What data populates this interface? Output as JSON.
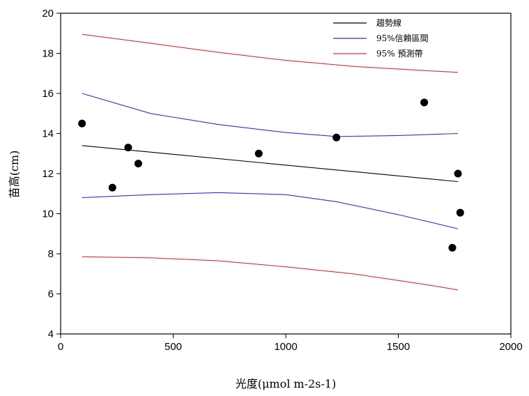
{
  "chart_data": {
    "type": "scatter",
    "xlabel": "光度(μmol m-2s-1)",
    "ylabel": "苗高(cm)",
    "xlim": [
      0,
      2000
    ],
    "ylim": [
      4,
      20
    ],
    "xticks": [
      0,
      500,
      1000,
      1500,
      2000
    ],
    "yticks": [
      4,
      6,
      8,
      10,
      12,
      14,
      16,
      18,
      20
    ],
    "grid": false,
    "legend_position": "top-right",
    "points": [
      {
        "x": 95,
        "y": 14.5
      },
      {
        "x": 230,
        "y": 11.3
      },
      {
        "x": 300,
        "y": 13.3
      },
      {
        "x": 345,
        "y": 12.5
      },
      {
        "x": 880,
        "y": 13.0
      },
      {
        "x": 1225,
        "y": 13.8
      },
      {
        "x": 1615,
        "y": 15.55
      },
      {
        "x": 1740,
        "y": 8.3
      },
      {
        "x": 1765,
        "y": 12.0
      },
      {
        "x": 1775,
        "y": 10.05
      }
    ],
    "series": [
      {
        "name": "趨勢線",
        "color": "#000000",
        "x": [
          95,
          1765
        ],
        "y": [
          13.4,
          11.6
        ]
      },
      {
        "name": "95%信賴區間",
        "color": "#3030c8",
        "x": [
          95,
          400,
          700,
          1000,
          1225,
          1500,
          1765
        ],
        "y": [
          16.0,
          15.0,
          14.45,
          14.05,
          13.85,
          13.9,
          14.0
        ],
        "y_lower": [
          10.8,
          10.95,
          11.05,
          10.95,
          10.6,
          9.95,
          9.25
        ]
      },
      {
        "name": "95% 預測帶",
        "color": "#d03030",
        "x": [
          95,
          400,
          700,
          1000,
          1300,
          1600,
          1765
        ],
        "y": [
          18.95,
          18.5,
          18.05,
          17.65,
          17.35,
          17.15,
          17.05
        ],
        "y_lower": [
          7.85,
          7.8,
          7.65,
          7.35,
          7.0,
          6.5,
          6.2
        ]
      }
    ]
  }
}
